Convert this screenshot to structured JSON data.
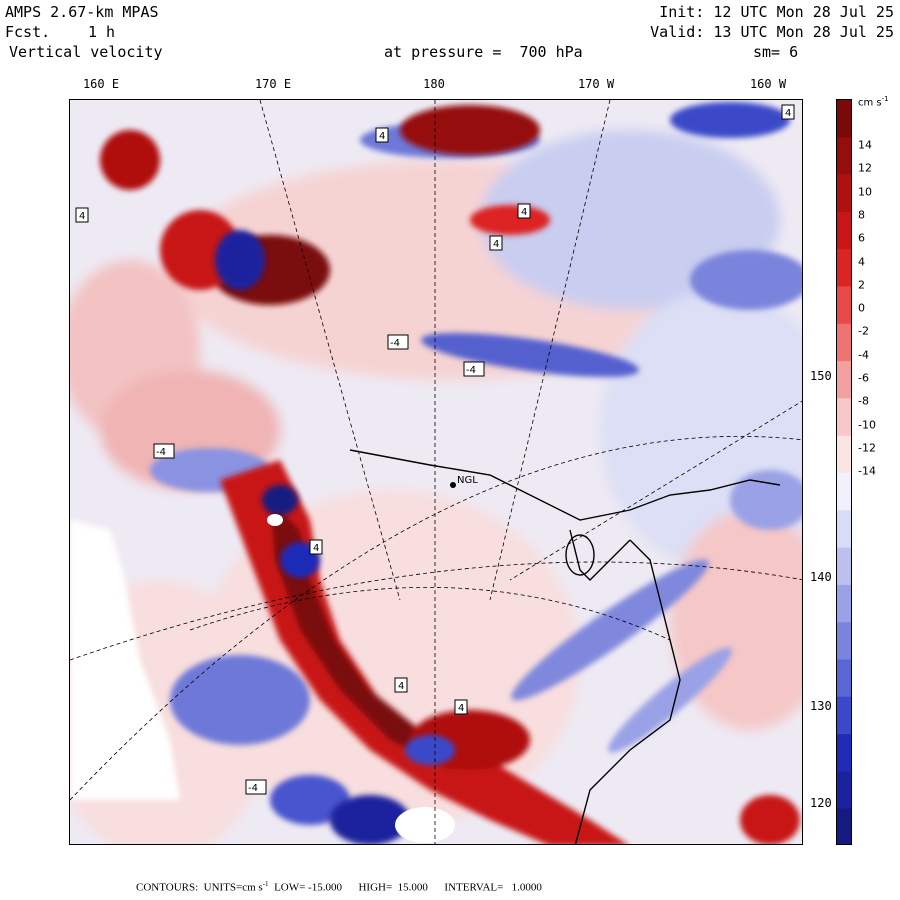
{
  "header": {
    "model": "AMPS 2.67-km MPAS",
    "fcst_label": "Fcst.",
    "fcst_value": "1 h",
    "field": "Vertical velocity",
    "level": "at pressure =  700 hPa",
    "init": "Init: 12 UTC Mon 28 Jul 25",
    "valid": "Valid: 13 UTC Mon 28 Jul 25",
    "smoothing": "sm= 6"
  },
  "longitude_labels": [
    "160 E",
    "170 E",
    "180",
    "170 W",
    "160 W"
  ],
  "latitude_labels": [
    "150 W",
    "140 W",
    "130 W",
    "120 W"
  ],
  "station_label": "NGL",
  "contour_labels": [
    "4",
    "-4"
  ],
  "colorbar": {
    "unit": "cm s",
    "unit_exp": "-1",
    "ticks": [
      "14",
      "12",
      "10",
      "8",
      "6",
      "4",
      "2",
      "0",
      "-2",
      "-4",
      "-6",
      "-8",
      "-10",
      "-12",
      "-14"
    ],
    "colors": [
      "#7a0a0a",
      "#950d0d",
      "#b01010",
      "#c81616",
      "#dc2424",
      "#e84a4a",
      "#ee7474",
      "#f3a0a0",
      "#f8c8c8",
      "#fae4e4",
      "#f1f1fb",
      "#d9dcf7",
      "#bbc0ef",
      "#9aa1e6",
      "#7a84dd",
      "#5a66d4",
      "#3b48c9",
      "#1f2cb8",
      "#1a229e",
      "#141a80"
    ]
  },
  "footer": {
    "contours": "CONTOURS:  UNITS=cm s",
    "units_exp": "-1",
    "rest": "  LOW= -15.000      HIGH=  15.000      INTERVAL=   1.0000"
  }
}
